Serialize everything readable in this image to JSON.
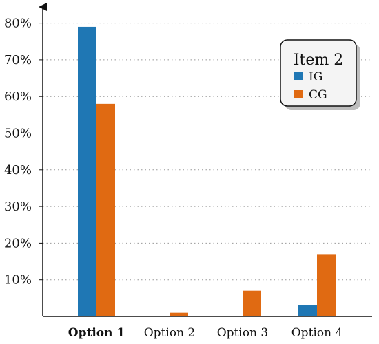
{
  "chart_data": {
    "type": "bar",
    "categories": [
      "Option 1",
      "Option 2",
      "Option 3",
      "Option 4"
    ],
    "category_emphasis": [
      "Option 1"
    ],
    "series": [
      {
        "name": "IG",
        "values": [
          79,
          0,
          0,
          3
        ],
        "color": "#1f77b4"
      },
      {
        "name": "CG",
        "values": [
          58,
          1,
          7,
          17
        ],
        "color": "#e06a12"
      }
    ],
    "ylim": [
      0,
      80
    ],
    "yticks": [
      10,
      20,
      30,
      40,
      50,
      60,
      70,
      80
    ],
    "ytick_labels": [
      "10%",
      "20%",
      "30%",
      "40%",
      "50%",
      "60%",
      "70%",
      "80%"
    ],
    "grid": "horizontal dotted",
    "legend": {
      "title": "Item 2",
      "placement": "top-right"
    }
  }
}
